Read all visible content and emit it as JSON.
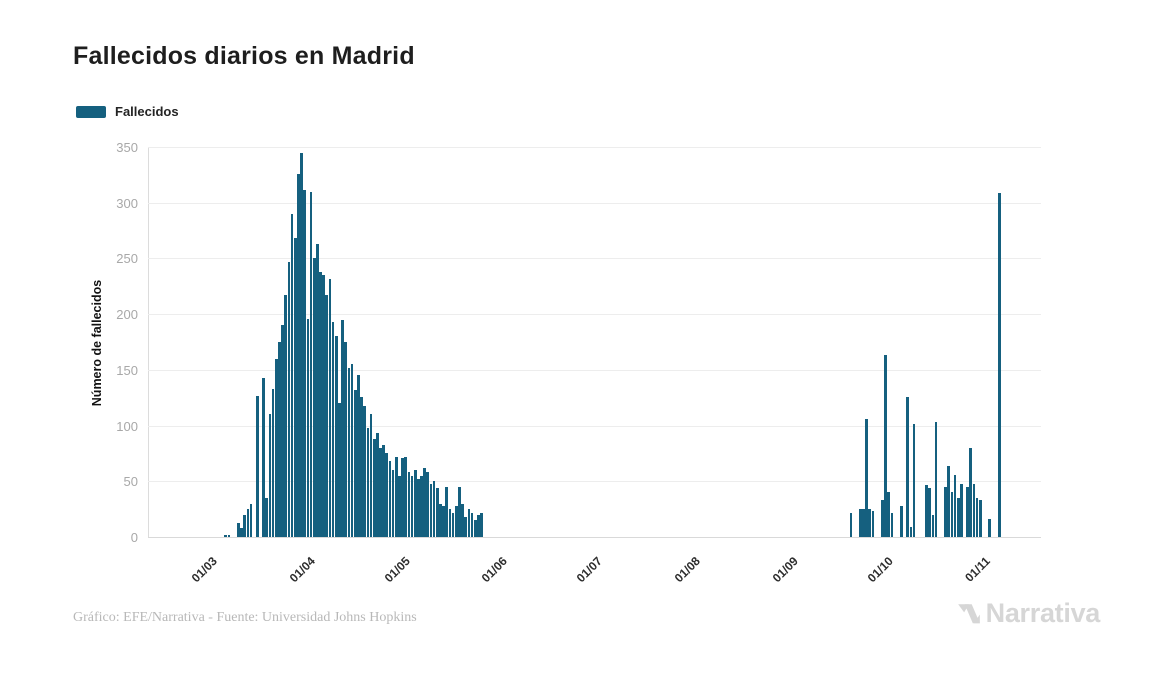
{
  "title": "Fallecidos diarios en Madrid",
  "legend": {
    "label": "Fallecidos",
    "color": "#15607f"
  },
  "footer": {
    "credit": "Gráfico: EFE/Narrativa - Fuente: Universidad Johns Hopkins"
  },
  "logo": {
    "text": "Narrativa"
  },
  "chart_data": {
    "type": "bar",
    "title": "Fallecidos diarios en Madrid",
    "xlabel": "",
    "ylabel": "Número de fallecidos",
    "ylim": [
      0,
      350
    ],
    "yticks": [
      0,
      50,
      100,
      150,
      200,
      250,
      300,
      350
    ],
    "grid": "horizontal-only",
    "legend_position": "top-left",
    "bar_color": "#15607f",
    "series_name": "Fallecidos",
    "x_tick_labels": [
      "01/03",
      "01/04",
      "01/05",
      "01/06",
      "01/07",
      "01/08",
      "01/09",
      "01/10",
      "01/11"
    ],
    "months": [
      {
        "label": "01/03",
        "daily_values": [
          0,
          0,
          0,
          0,
          0,
          2,
          2,
          0,
          0,
          13,
          8,
          20,
          25,
          30,
          0,
          127,
          0,
          143,
          35,
          110,
          133,
          160,
          175,
          190,
          217,
          247,
          290,
          268,
          326,
          345,
          311
        ]
      },
      {
        "label": "01/04",
        "daily_values": [
          196,
          310,
          250,
          263,
          238,
          235,
          217,
          232,
          193,
          180,
          120,
          195,
          175,
          152,
          155,
          132,
          145,
          126,
          118,
          98,
          110,
          88,
          93,
          80,
          83,
          75,
          68,
          60,
          72,
          55
        ]
      },
      {
        "label": "01/05",
        "daily_values": [
          71,
          72,
          58,
          55,
          60,
          52,
          55,
          62,
          58,
          48,
          50,
          44,
          30,
          28,
          45,
          25,
          22,
          28,
          45,
          30,
          18,
          25,
          22,
          15,
          20,
          22,
          0,
          0,
          0,
          0,
          0
        ]
      },
      {
        "label": "01/06",
        "daily_values": [
          0,
          0,
          0,
          0,
          0,
          0,
          0,
          0,
          0,
          0,
          0,
          0,
          0,
          0,
          0,
          0,
          0,
          0,
          0,
          0,
          0,
          0,
          0,
          0,
          0,
          0,
          0,
          0,
          0,
          0
        ]
      },
      {
        "label": "01/07",
        "daily_values": [
          0,
          0,
          0,
          0,
          0,
          0,
          0,
          0,
          0,
          0,
          0,
          0,
          0,
          0,
          0,
          0,
          0,
          0,
          0,
          0,
          0,
          0,
          0,
          0,
          0,
          0,
          0,
          0,
          0,
          0,
          0
        ]
      },
      {
        "label": "01/08",
        "daily_values": [
          0,
          0,
          0,
          0,
          0,
          0,
          0,
          0,
          0,
          0,
          0,
          0,
          0,
          0,
          0,
          0,
          0,
          0,
          0,
          0,
          0,
          0,
          0,
          0,
          0,
          0,
          0,
          0,
          0,
          0,
          0
        ]
      },
      {
        "label": "01/09",
        "daily_values": [
          0,
          0,
          0,
          0,
          0,
          0,
          0,
          0,
          0,
          0,
          0,
          0,
          0,
          0,
          0,
          0,
          0,
          0,
          0,
          22,
          0,
          0,
          25,
          25,
          106,
          25,
          23,
          0,
          0,
          33
        ]
      },
      {
        "label": "01/10",
        "daily_values": [
          163,
          40,
          22,
          0,
          0,
          28,
          0,
          126,
          9,
          101,
          0,
          0,
          0,
          47,
          44,
          20,
          103,
          0,
          0,
          45,
          64,
          40,
          56,
          35,
          48,
          0,
          45,
          80,
          48,
          35,
          33
        ]
      },
      {
        "label": "01/11",
        "daily_values": [
          0,
          0,
          16,
          0,
          0,
          309
        ]
      }
    ]
  }
}
